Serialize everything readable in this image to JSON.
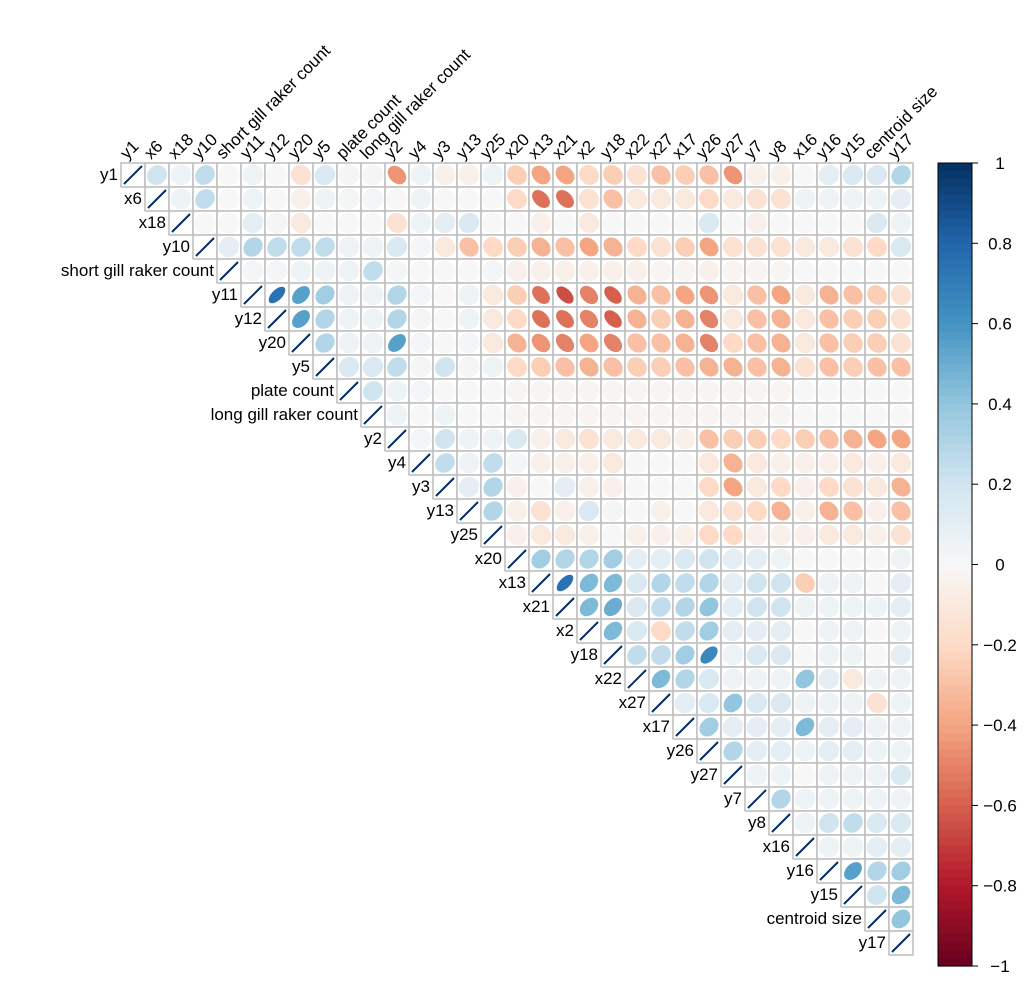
{
  "chart_data": {
    "type": "heatmap",
    "variables": [
      "y1",
      "x6",
      "x18",
      "y10",
      "short gill raker count",
      "y11",
      "y12",
      "y20",
      "y5",
      "plate count",
      "long gill raker count",
      "y2",
      "y4",
      "y3",
      "y13",
      "y25",
      "x20",
      "x13",
      "x21",
      "x2",
      "y18",
      "x22",
      "x27",
      "x17",
      "y26",
      "y27",
      "y7",
      "y8",
      "x16",
      "y16",
      "y15",
      "centroid size",
      "y17"
    ],
    "matrix_rows": [
      "1,0.2,0.05,0.25,0,0.05,0,-0.15,0.15,0.02,0.02,-0.45,0.05,-0.05,-0.05,0.05,-0.25,-0.4,-0.4,-0.2,-0.25,-0.15,-0.3,-0.25,-0.3,-0.45,-0.05,-0.05,0,0.1,0.15,0.15,0.3",
      "0.2,1,0.05,0.25,0,0.05,0,-0.05,0.05,0.02,0.02,0,0.05,0,0,0,-0.2,-0.55,-0.55,-0.15,-0.3,-0.1,-0.1,-0.1,-0.2,-0.1,-0.15,-0.15,0.05,0.05,0.05,0.05,0.1",
      "0.05,0.05,1,0,0,0.1,0.02,-0.1,0,0,0,-0.15,0.05,0.1,0.15,0,0,-0.05,0,-0.1,0,0,0,0,0.15,0,-0.05,0,0,0,0,0.15,0.05",
      "0.25,0.25,0,1,0.1,0.3,0.25,0.25,0.25,0.05,0.05,0.15,0.02,-0.1,-0.3,-0.2,-0.25,-0.35,-0.3,-0.4,-0.35,-0.2,-0.15,-0.25,-0.4,-0.15,-0.15,-0.15,-0.1,-0.1,-0.15,-0.2,0.15",
      "0,0,0,0.1,1,0.02,0.02,0.05,0.05,0.05,0.25,0.02,0,0,0,0.02,-0.05,-0.05,-0.05,-0.05,-0.05,-0.05,-0.02,-0.02,-0.05,-0.02,-0.02,-0.02,0,0,0,0,0",
      "0.05,0.05,0.1,0.3,0.02,1,0.75,0.55,0.35,0.05,0.05,0.3,0.02,0,0.05,-0.1,-0.25,-0.55,-0.65,-0.5,-0.6,-0.35,-0.3,-0.4,-0.45,-0.1,-0.3,-0.4,-0.1,-0.35,-0.3,-0.25,-0.15",
      "0,0,0.02,0.25,0.02,0.75,1,0.55,0.3,0.05,0.05,0.3,0.02,0,0.05,-0.1,-0.2,-0.55,-0.55,-0.5,-0.6,-0.35,-0.25,-0.35,-0.5,-0.1,-0.3,-0.35,-0.1,-0.3,-0.25,-0.25,-0.15",
      "-0.15,-0.05,-0.1,0.25,0.05,0.55,0.55,1,0.3,0.05,0.05,0.55,0.02,0,0.02,-0.1,-0.35,-0.45,-0.5,-0.4,-0.5,-0.3,-0.3,-0.35,-0.5,-0.2,-0.3,-0.35,-0.1,-0.3,-0.25,-0.25,-0.15",
      "0.15,0.05,0,0.25,0.05,0.35,0.3,0.3,1,0.15,0.15,0.25,0.02,0.2,0.02,0.05,-0.2,-0.25,-0.3,-0.35,-0.3,-0.25,-0.25,-0.3,-0.35,-0.35,-0.3,-0.35,-0.15,-0.3,-0.25,-0.3,-0.3",
      "0.02,0.02,0,0.05,0.05,0.05,0.05,0.05,0.15,1,0.2,0.05,0.02,0,0,0,-0.02,-0.02,-0.02,-0.02,-0.02,-0.02,-0.02,-0.02,-0.02,-0.02,-0.02,-0.02,0,0,0,0,0",
      "0.02,0.02,0,0.05,0.25,0.05,0.05,0.05,0.15,0.2,1,0.05,0,0.05,0,0,-0.02,-0.02,-0.02,-0.02,-0.02,-0.02,-0.02,-0.02,-0.02,-0.02,-0.02,-0.02,0,0,0,0,0",
      "-0.45,0,-0.15,0.15,0.02,0.3,0.3,0.55,0.25,0.05,0.05,1,0.02,0.2,0.05,0.05,0.15,-0.05,-0.1,-0.15,-0.1,-0.1,-0.1,-0.05,-0.3,-0.25,-0.25,-0.2,-0.25,-0.3,-0.35,-0.4,-0.4",
      "0.05,0.05,0.05,0.02,0,0.02,0.02,0.02,0.02,0.02,0,0.02,1,0.25,0.05,0.25,0.02,-0.05,-0.05,-0.05,-0.1,0,0,0,-0.1,-0.35,-0.1,-0.05,-0.05,-0.05,-0.1,-0.05,-0.1",
      "-0.05,0,0.1,-0.1,0,0,0,0,0.2,0,0.05,0.2,0.25,1,0.1,0.3,-0.05,0,0.1,-0.05,-0.05,0,0,0,-0.2,-0.4,-0.1,-0.2,-0.05,-0.2,-0.15,-0.1,-0.35",
      "-0.05,0,0.15,-0.3,0,0.05,0.05,0.02,0.02,0,0,0.05,0.05,0.1,1,0.3,-0.05,-0.15,-0.05,0.15,0.02,0,-0.05,0,-0.1,-0.15,-0.2,-0.35,-0.05,-0.35,-0.3,-0.05,-0.3",
      "0.05,0,0,-0.2,0.02,-0.1,-0.1,-0.1,0.05,0,0,0.05,0.25,0.3,0.3,1,-0.05,-0.1,-0.1,-0.05,0,-0.05,-0.05,-0.05,-0.2,-0.2,-0.05,-0.05,-0.05,-0.1,-0.1,-0.05,-0.15",
      "-0.25,-0.2,0,-0.25,-0.05,-0.25,-0.2,-0.35,-0.2,-0.02,-0.02,0.15,0.02,-0.05,-0.05,-0.05,1,0.35,0.3,0.3,0.35,0.1,0.1,0.15,0.2,0.1,0.1,0.05,0,0,0,0,0.05",
      "-0.4,-0.55,-0.05,-0.35,-0.05,-0.55,-0.55,-0.45,-0.25,-0.02,-0.02,-0.05,-0.05,0,-0.15,-0.1,0.35,1,0.75,0.45,0.45,0.15,0.3,0.25,0.3,0.1,0.2,0.2,-0.25,0.05,0.05,0,0.1",
      "-0.4,-0.55,0,-0.3,-0.05,-0.65,-0.55,-0.5,-0.3,-0.02,-0.02,-0.1,-0.05,0.1,-0.05,-0.1,0.3,0.75,1,0.45,0.5,0.15,0.25,0.3,0.4,0.1,0.2,0.2,0.05,0.05,0.05,0.05,0.1",
      "-0.2,-0.15,-0.1,-0.4,-0.05,-0.5,-0.5,-0.4,-0.35,-0.02,-0.02,-0.15,-0.05,-0.05,0.15,-0.05,0.3,0.45,0.45,1,0.45,0.15,-0.2,0.25,0.35,0.1,0.1,0.1,0,0.05,0.05,0,0.05",
      "-0.25,-0.3,0,-0.35,-0.05,-0.6,-0.6,-0.5,-0.3,-0.02,-0.02,-0.1,-0.1,-0.05,0.02,0,0.35,0.45,0.5,0.45,1,0.25,0.25,0.35,0.65,0.05,0.15,0.15,0,0.05,0.05,0,0.1",
      "-0.15,-0.1,0,-0.2,-0.05,-0.35,-0.35,-0.3,-0.25,-0.02,-0.02,-0.1,0,0,0,-0.05,0.1,0.15,0.15,0.15,0.25,1,0.45,0.3,0.15,0.05,0.05,0.05,0.4,0.1,-0.1,0.05,0.05",
      "-0.3,-0.1,0,-0.15,-0.02,-0.3,-0.25,-0.3,-0.25,-0.02,-0.02,-0.1,0,0,-0.05,-0.05,0.1,0.3,0.25,-0.2,0.25,0.45,1,0.1,0.15,0.4,0.15,0.15,0.05,0.05,0.05,-0.15,0.05",
      "-0.25,-0.1,0,-0.25,-0.02,-0.4,-0.35,-0.35,-0.3,-0.02,-0.02,-0.05,0,0,0,-0.05,0.15,0.25,0.3,0.25,0.35,0.3,0.1,1,0.35,0.1,0.1,0.1,0.45,0.1,0.1,0.05,0.05",
      "-0.3,-0.2,0.15,-0.4,-0.05,-0.45,-0.5,-0.5,-0.35,-0.02,-0.02,-0.3,-0.1,-0.2,-0.1,-0.2,0.2,0.3,0.4,0.35,0.65,0.15,0.15,0.35,1,0.3,0.1,0.1,0.05,0.1,0.1,0.05,0.05",
      "-0.45,-0.1,0,-0.15,-0.02,-0.1,-0.1,-0.2,-0.35,-0.02,-0.02,-0.25,-0.35,-0.4,-0.15,-0.2,0.1,0.1,0.1,0.1,0.05,0.05,0.4,0.1,0.3,1,0.05,0.05,0,0.05,0.05,0.05,0.15",
      "-0.05,-0.15,-0.05,-0.15,-0.02,-0.3,-0.3,-0.3,-0.3,-0.02,-0.02,-0.25,-0.1,-0.1,-0.2,-0.05,0.1,0.2,0.2,0.1,0.15,0.05,0.15,0.1,0.1,0.05,1,0.3,0.05,0.05,0.05,0.05,0.05",
      "-0.05,-0.15,0,-0.15,-0.02,-0.4,-0.35,-0.35,-0.35,-0.02,-0.02,-0.2,-0.05,-0.2,-0.35,-0.05,0.05,0.2,0.2,0.1,0.15,0.05,0.15,0.1,0.1,0.05,0.3,1,0.05,0.2,0.25,0.15,0.15",
      "0,0.05,0,-0.1,0,-0.1,-0.1,-0.1,-0.15,0,0,-0.25,-0.05,-0.05,-0.05,-0.05,0,-0.25,0.05,0,0,0.4,0.05,0.45,0.05,0,0.05,0.05,1,0.05,0.05,0.1,0.1",
      "0.1,0.05,0,-0.1,0,-0.35,-0.3,-0.3,-0.3,0,0,-0.3,-0.05,-0.2,-0.35,-0.1,0,0.05,0.05,0.05,0.05,0.1,0.05,0.1,0.1,0.05,0.05,0.2,0.05,1,0.55,0.3,0.35",
      "0.15,0.05,0,-0.15,0,-0.3,-0.25,-0.25,-0.25,0,0,-0.35,-0.1,-0.15,-0.3,-0.1,0,0.05,0.05,0.05,0.05,-0.1,0.05,0.1,0.1,0.05,0.05,0.25,0.05,0.55,1,0.2,0.45",
      "0.15,0.05,0.15,-0.2,0,-0.25,-0.25,-0.25,-0.3,0,0,-0.4,-0.05,-0.1,-0.05,-0.05,0,0,0.05,0,0,0.05,-0.15,0.05,0.05,0.05,0.05,0.15,0.1,0.3,0.2,1,0.4",
      "0.3,0.1,0.05,0.15,0,-0.15,-0.15,-0.15,-0.3,0,0,-0.4,-0.1,-0.35,-0.3,-0.15,0.05,0.1,0.1,0.05,0.1,0.05,0.05,0.05,0.05,0.15,0.05,0.15,0.1,0.35,0.45,0.4,1"
    ],
    "color_scale": {
      "ticks": [
        "1",
        "0.8",
        "0.6",
        "0.4",
        "0.2",
        "0",
        "−0.2",
        "−0.4",
        "−0.6",
        "−0.8",
        "−1"
      ],
      "range": [
        -1,
        1
      ],
      "negative_color": "#67001F",
      "positive_color": "#053061",
      "mid_color": "#F7F7F7"
    },
    "lower_triangle": "blank",
    "upper_triangle": "ellipses colored by correlation",
    "diagonal": "line glyph",
    "legend_position": "right",
    "grid_color": "#BEBEBE"
  }
}
